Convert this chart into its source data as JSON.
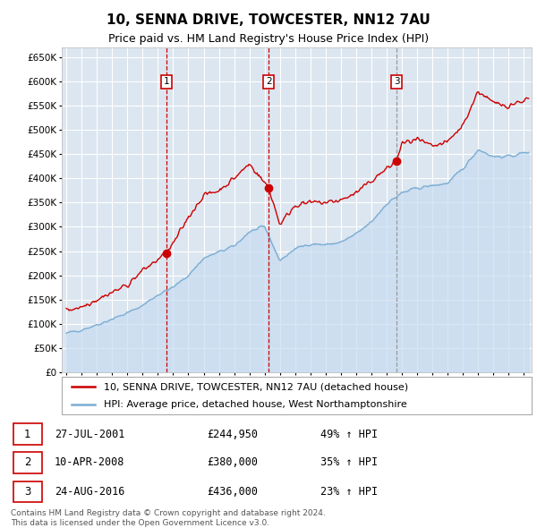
{
  "title": "10, SENNA DRIVE, TOWCESTER, NN12 7AU",
  "subtitle": "Price paid vs. HM Land Registry's House Price Index (HPI)",
  "ylim": [
    0,
    670000
  ],
  "yticks": [
    0,
    50000,
    100000,
    150000,
    200000,
    250000,
    300000,
    350000,
    400000,
    450000,
    500000,
    550000,
    600000,
    650000
  ],
  "xlim_start": 1994.7,
  "xlim_end": 2025.5,
  "background_color": "#ffffff",
  "plot_bg_color": "#dce6f0",
  "grid_color": "#ffffff",
  "line1_color": "#cc0000",
  "line2_color": "#7aadd4",
  "transaction_color": "#cc0000",
  "dashed_line_colors": [
    "#cc0000",
    "#cc0000",
    "#999999"
  ],
  "transactions": [
    {
      "date_year": 2001.57,
      "price": 244950,
      "label": "1"
    },
    {
      "date_year": 2008.27,
      "price": 380000,
      "label": "2"
    },
    {
      "date_year": 2016.65,
      "price": 436000,
      "label": "3"
    }
  ],
  "transaction_details": [
    {
      "num": "1",
      "date": "27-JUL-2001",
      "price": "£244,950",
      "change": "49% ↑ HPI"
    },
    {
      "num": "2",
      "date": "10-APR-2008",
      "price": "£380,000",
      "change": "35% ↑ HPI"
    },
    {
      "num": "3",
      "date": "24-AUG-2016",
      "price": "£436,000",
      "change": "23% ↑ HPI"
    }
  ],
  "legend_line1": "10, SENNA DRIVE, TOWCESTER, NN12 7AU (detached house)",
  "legend_line2": "HPI: Average price, detached house, West Northamptonshire",
  "footer": "Contains HM Land Registry data © Crown copyright and database right 2024.\nThis data is licensed under the Open Government Licence v3.0.",
  "title_fontsize": 11,
  "subtitle_fontsize": 9,
  "tick_fontsize": 7.5,
  "legend_fontsize": 8,
  "footer_fontsize": 6.5
}
